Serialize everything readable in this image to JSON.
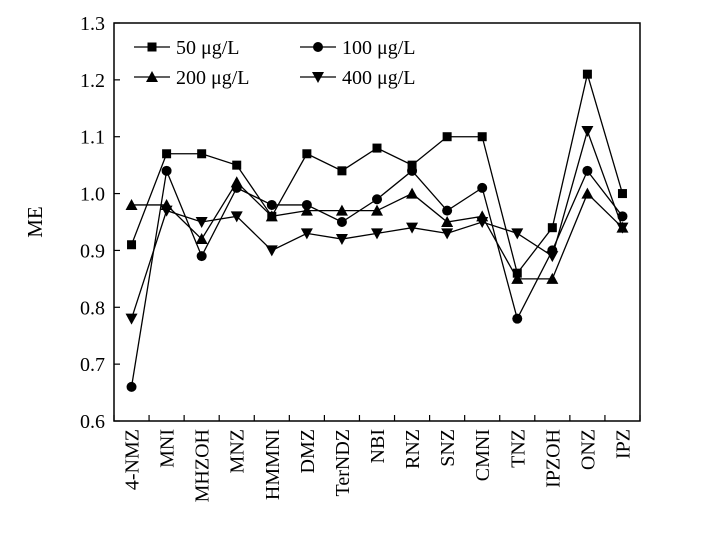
{
  "chart_data": {
    "type": "line",
    "title": "",
    "xlabel": "",
    "ylabel": "ME",
    "ylim": [
      0.6,
      1.3
    ],
    "yticks": [
      "0.6",
      "0.7",
      "0.8",
      "0.9",
      "1.0",
      "1.1",
      "1.2",
      "1.3"
    ],
    "grid": false,
    "legend_position": "top-left",
    "categories": [
      "4-NMZ",
      "MNI",
      "MHZOH",
      "MNZ",
      "HMMNI",
      "DMZ",
      "TerNDZ",
      "NBI",
      "RNZ",
      "SNZ",
      "CMNI",
      "TNZ",
      "IPZOH",
      "ONZ",
      "IPZ"
    ],
    "series": [
      {
        "name": "50 μg/L",
        "marker": "square",
        "color": "#000000",
        "values": [
          0.91,
          1.07,
          1.07,
          1.05,
          0.96,
          1.07,
          1.04,
          1.08,
          1.05,
          1.1,
          1.1,
          0.86,
          0.94,
          1.21,
          1.0
        ]
      },
      {
        "name": "100 μg/L",
        "marker": "circle",
        "color": "#000000",
        "values": [
          0.66,
          1.04,
          0.89,
          1.01,
          0.98,
          0.98,
          0.95,
          0.99,
          1.04,
          0.97,
          1.01,
          0.78,
          0.9,
          1.04,
          0.96
        ]
      },
      {
        "name": "200 μg/L",
        "marker": "triangle-up",
        "color": "#000000",
        "values": [
          0.98,
          0.98,
          0.92,
          1.02,
          0.96,
          0.97,
          0.97,
          0.97,
          1.0,
          0.95,
          0.96,
          0.85,
          0.85,
          1.0,
          0.94
        ]
      },
      {
        "name": "400 μg/L",
        "marker": "triangle-down",
        "color": "#000000",
        "values": [
          0.78,
          0.97,
          0.95,
          0.96,
          0.9,
          0.93,
          0.92,
          0.93,
          0.94,
          0.93,
          0.95,
          0.93,
          0.89,
          1.11,
          0.94
        ]
      }
    ]
  }
}
